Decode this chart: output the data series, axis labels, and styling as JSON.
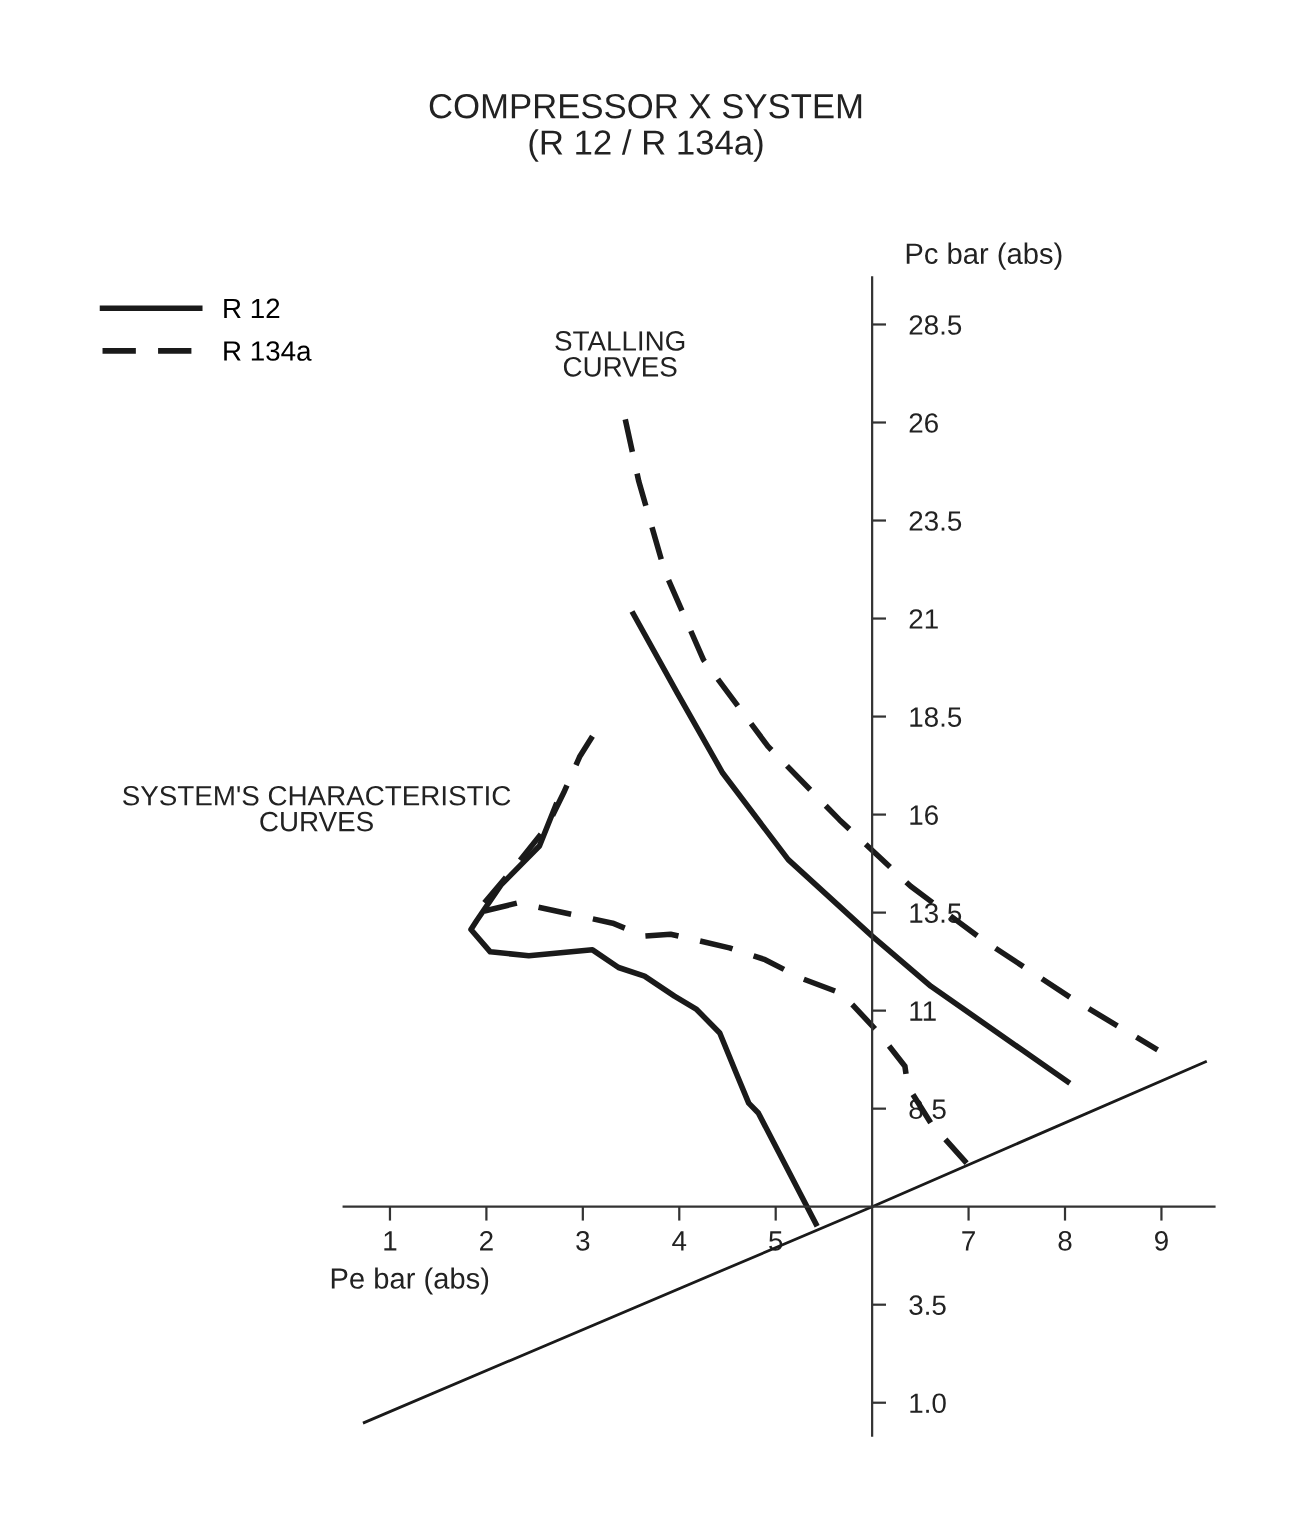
{
  "chart_data": {
    "type": "line",
    "title": "COMPRESSOR X SYSTEM",
    "subtitle": "(R 12 / R 134a)",
    "xlabel": "Pe bar (abs)",
    "ylabel": "Pc bar (abs)",
    "annotations": [
      "STALLING\nCURVES",
      "SYSTEM'S CHARACTERISTIC\nCURVES"
    ],
    "xlim": [
      0.52,
      9.55
    ],
    "ylim": [
      0.16,
      29.7
    ],
    "xticks": [
      1,
      2,
      3,
      4,
      5,
      7,
      8,
      9
    ],
    "yticks": [
      {
        "value": 1,
        "label": "1.0"
      },
      3.5,
      8.5,
      11,
      13.5,
      16,
      18.5,
      21,
      23.5,
      26,
      28.5
    ],
    "grid": false,
    "legend": "top left",
    "marker": "none",
    "series": [
      {
        "name": "R 12",
        "color": "#1a1a1a",
        "line_style": "solid",
        "x": [
          3.51,
          3.98,
          4.45,
          5.13,
          6.0,
          6.61,
          8.05
        ],
        "values": [
          21.18,
          19.1,
          17.06,
          14.85,
          12.9,
          11.62,
          9.15
        ]
      },
      {
        "name": "R 134a",
        "color": "#1a1a1a",
        "line_style": "dashed",
        "x": [
          3.44,
          3.58,
          3.85,
          4.25,
          4.92,
          5.66,
          6.4,
          7.15,
          8.09,
          8.96
        ],
        "values": [
          26.08,
          24.5,
          22.2,
          19.95,
          17.74,
          15.87,
          14.17,
          12.8,
          11.28,
          10.0
        ]
      },
      {
        "color": "#1a1a1a",
        "line_style": "solid",
        "x": [
          2.73,
          2.55,
          2.15,
          1.9,
          1.84,
          2.04,
          2.44,
          3.1,
          3.37,
          3.64,
          3.95,
          4.18,
          4.42,
          4.59,
          4.72,
          4.82,
          5.43
        ],
        "values": [
          16.3,
          15.2,
          14.2,
          13.3,
          13.07,
          12.5,
          12.4,
          12.55,
          12.1,
          11.88,
          11.37,
          11.03,
          10.43,
          9.41,
          8.64,
          8.39,
          5.5
        ]
      },
      {
        "color": "#1a1a1a",
        "line_style": "dashed",
        "x": [
          3.1,
          2.97,
          2.8,
          2.63,
          2.3,
          1.89,
          2.33,
          3.31,
          3.64,
          3.91,
          4.52,
          4.89,
          5.26,
          5.67,
          5.8,
          6.07,
          6.34,
          6.37,
          6.61,
          6.98
        ],
        "values": [
          18.0,
          17.49,
          16.55,
          15.7,
          14.68,
          13.49,
          13.75,
          13.23,
          12.9,
          12.95,
          12.6,
          12.3,
          11.83,
          11.45,
          11.14,
          10.43,
          9.58,
          9.07,
          8.13,
          7.11
        ]
      },
      {
        "color": "#1a1a1a",
        "x": [
          0.72,
          6.0,
          9.47
        ],
        "values": [
          0.48,
          6.0,
          9.71
        ]
      }
    ]
  }
}
